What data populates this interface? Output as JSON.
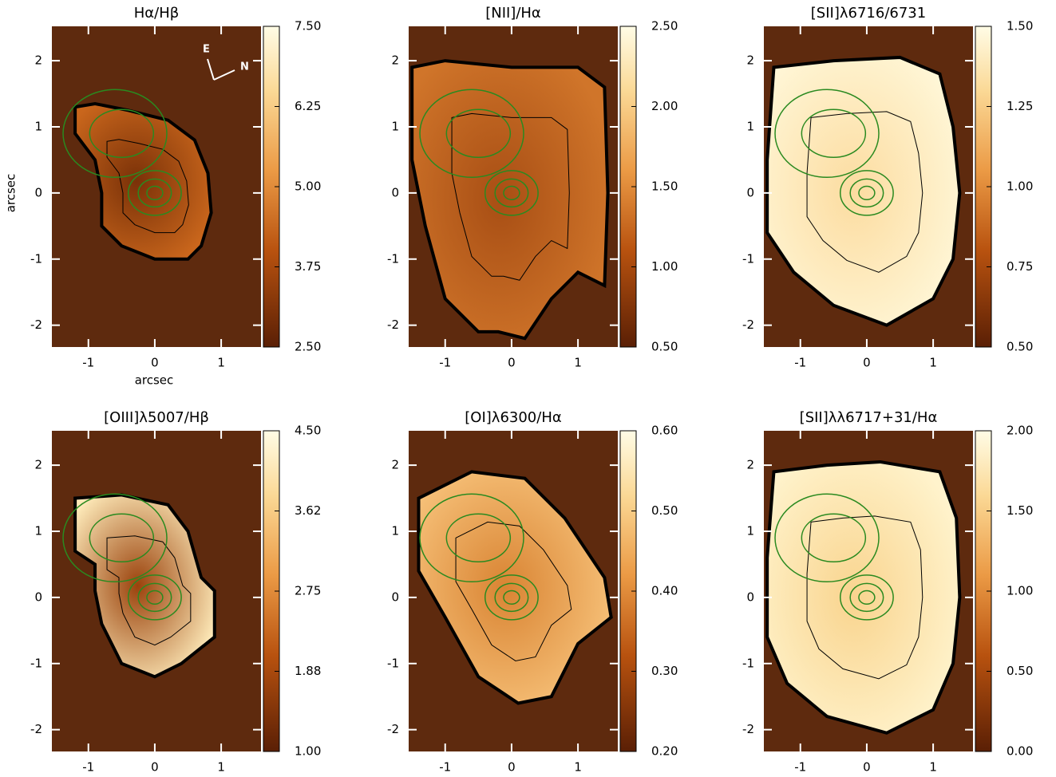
{
  "chart_data": [
    {
      "type": "heatmap",
      "title": "Hα/Hβ",
      "xlabel": "arcsec",
      "ylabel": "arcsec",
      "annotations": [
        "E",
        "N"
      ],
      "xlim": [
        -1.55,
        1.6
      ],
      "ylim": [
        -2.33,
        2.52
      ],
      "xticks": [
        -1,
        0,
        1
      ],
      "yticks": [
        -2,
        -1,
        0,
        1,
        2
      ],
      "colorbar": {
        "lim": [
          2.5,
          7.5
        ],
        "ticks": [
          {
            "value": 2.5,
            "label": "2.50"
          },
          {
            "value": 3.75,
            "label": "3.75"
          },
          {
            "value": 5,
            "label": "5.00"
          },
          {
            "value": 6.25,
            "label": "6.25"
          },
          {
            "value": 7.5,
            "label": "7.50"
          }
        ]
      }
    },
    {
      "type": "heatmap",
      "title": "[NII]/Hα",
      "xlim": [
        -1.55,
        1.6
      ],
      "ylim": [
        -2.33,
        2.52
      ],
      "xticks": [
        -1,
        0,
        1
      ],
      "yticks": [
        -2,
        -1,
        0,
        1,
        2
      ],
      "colorbar": {
        "lim": [
          0.5,
          2.5
        ],
        "ticks": [
          {
            "value": 0.5,
            "label": "0.50"
          },
          {
            "value": 1,
            "label": "1.00"
          },
          {
            "value": 1.5,
            "label": "1.50"
          },
          {
            "value": 2,
            "label": "2.00"
          },
          {
            "value": 2.5,
            "label": "2.50"
          }
        ]
      }
    },
    {
      "type": "heatmap",
      "title": "[SII]λ6716/6731",
      "xlim": [
        -1.55,
        1.6
      ],
      "ylim": [
        -2.33,
        2.52
      ],
      "xticks": [
        -1,
        0,
        1
      ],
      "yticks": [
        -2,
        -1,
        0,
        1,
        2
      ],
      "colorbar": {
        "lim": [
          0.5,
          1.5
        ],
        "ticks": [
          {
            "value": 0.5,
            "label": "0.50"
          },
          {
            "value": 0.75,
            "label": "0.75"
          },
          {
            "value": 1,
            "label": "1.00"
          },
          {
            "value": 1.25,
            "label": "1.25"
          },
          {
            "value": 1.5,
            "label": "1.50"
          }
        ]
      }
    },
    {
      "type": "heatmap",
      "title": "[OIII]λ5007/Hβ",
      "xlim": [
        -1.55,
        1.6
      ],
      "ylim": [
        -2.33,
        2.52
      ],
      "xticks": [
        -1,
        0,
        1
      ],
      "yticks": [
        -2,
        -1,
        0,
        1,
        2
      ],
      "colorbar": {
        "lim": [
          1,
          4.5
        ],
        "ticks": [
          {
            "value": 1,
            "label": "1.00"
          },
          {
            "value": 1.875,
            "label": "1.88"
          },
          {
            "value": 2.75,
            "label": "2.75"
          },
          {
            "value": 3.625,
            "label": "3.62"
          },
          {
            "value": 4.5,
            "label": "4.50"
          }
        ]
      }
    },
    {
      "type": "heatmap",
      "title": "[OI]λ6300/Hα",
      "xlim": [
        -1.55,
        1.6
      ],
      "ylim": [
        -2.33,
        2.52
      ],
      "xticks": [
        -1,
        0,
        1
      ],
      "yticks": [
        -2,
        -1,
        0,
        1,
        2
      ],
      "colorbar": {
        "lim": [
          0.2,
          0.6
        ],
        "ticks": [
          {
            "value": 0.2,
            "label": "0.20"
          },
          {
            "value": 0.3,
            "label": "0.30"
          },
          {
            "value": 0.4,
            "label": "0.40"
          },
          {
            "value": 0.5,
            "label": "0.50"
          },
          {
            "value": 0.6,
            "label": "0.60"
          }
        ]
      }
    },
    {
      "type": "heatmap",
      "title": "[SII]λλ6717+31/Hα",
      "xlim": [
        -1.55,
        1.6
      ],
      "ylim": [
        -2.33,
        2.52
      ],
      "xticks": [
        -1,
        0,
        1
      ],
      "yticks": [
        -2,
        -1,
        0,
        1,
        2
      ],
      "colorbar": {
        "lim": [
          0,
          2
        ],
        "ticks": [
          {
            "value": 0,
            "label": "0.00"
          },
          {
            "value": 0.5,
            "label": "0.50"
          },
          {
            "value": 1,
            "label": "1.00"
          },
          {
            "value": 1.5,
            "label": "1.50"
          },
          {
            "value": 2,
            "label": "2.00"
          }
        ]
      }
    }
  ]
}
